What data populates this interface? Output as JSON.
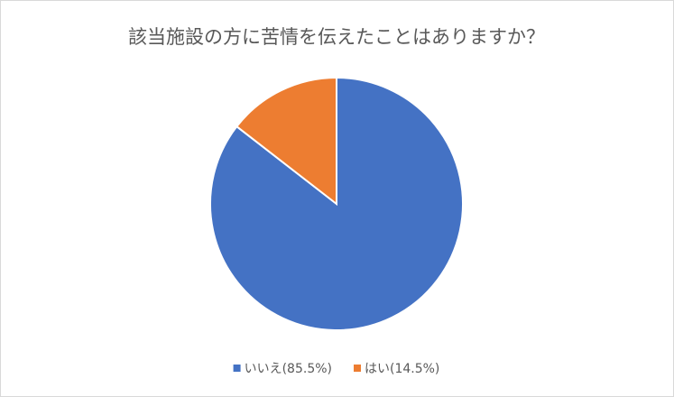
{
  "chart_data": {
    "type": "pie",
    "title": "該当施設の方に苦情を伝えたことはありますか？",
    "categories": [
      "いいえ(85.5%)",
      "はい(14.5%)"
    ],
    "values": [
      85.5,
      14.5
    ],
    "colors": [
      "#4472c4",
      "#ed7d31"
    ],
    "legend": "bottom"
  }
}
